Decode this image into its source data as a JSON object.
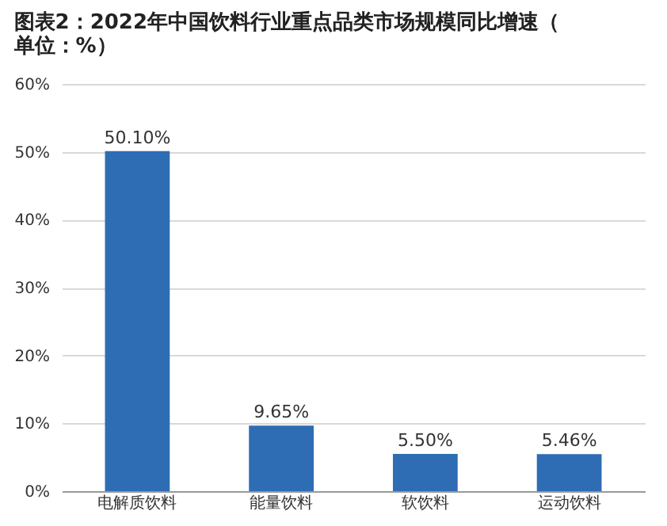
{
  "chart_data": {
    "type": "bar",
    "title": "图表2：2022年中国饮料行业重点品类市场规模同比增速（单位：%）",
    "categories": [
      "电解质饮料",
      "能量饮料",
      "软饮料",
      "运动饮料"
    ],
    "values": [
      50.1,
      9.65,
      5.5,
      5.46
    ],
    "value_labels": [
      "50.10%",
      "9.65%",
      "5.50%",
      "5.46%"
    ],
    "color": "#2e6db4",
    "ylim": [
      0,
      60
    ],
    "yticks": [
      {
        "value": 0,
        "label": "0%"
      },
      {
        "value": 10,
        "label": "10%"
      },
      {
        "value": 20,
        "label": "20%"
      },
      {
        "value": 30,
        "label": "30%"
      },
      {
        "value": 40,
        "label": "40%"
      },
      {
        "value": 50,
        "label": "50%"
      },
      {
        "value": 60,
        "label": "60%"
      }
    ],
    "grid": "y"
  }
}
